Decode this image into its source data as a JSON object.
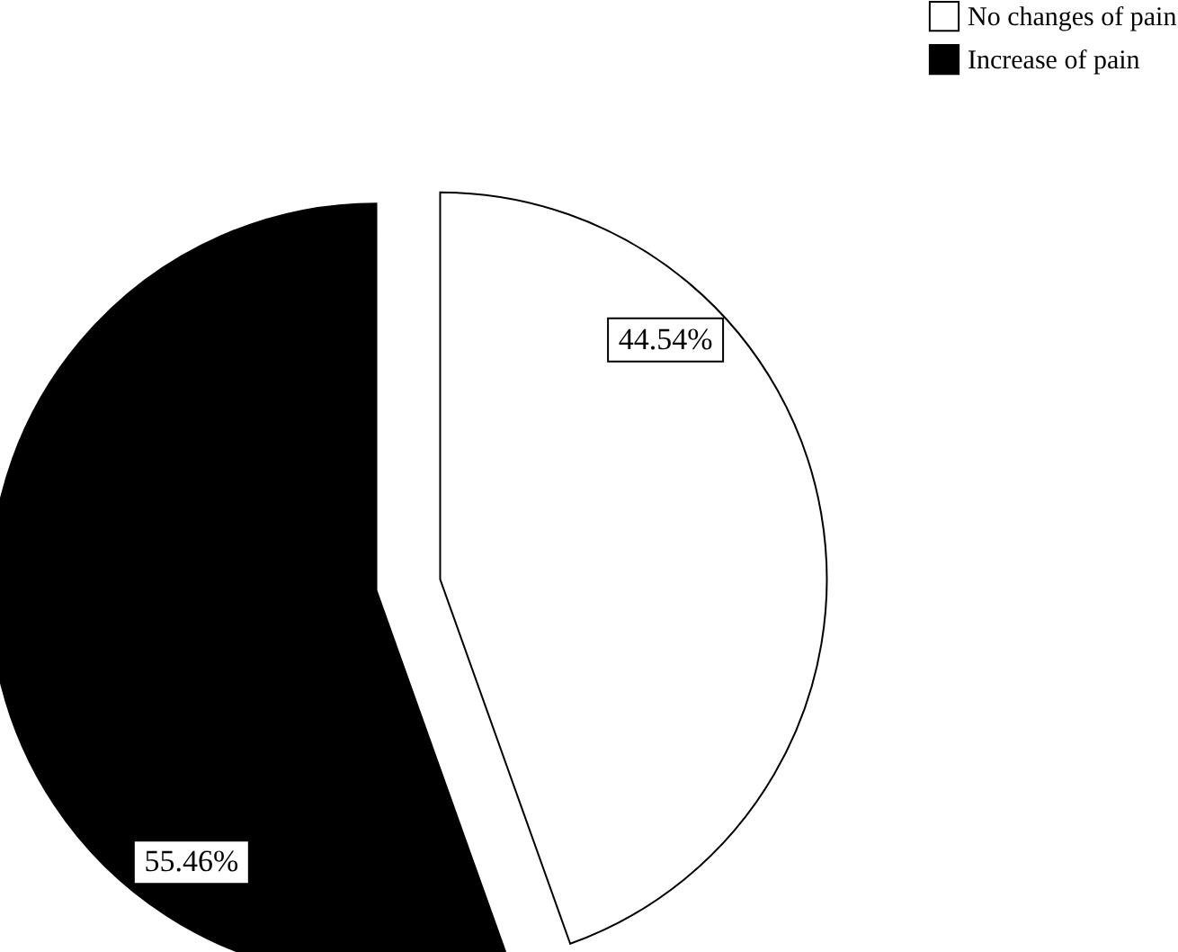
{
  "chart_data": {
    "type": "pie",
    "categories": [
      "No changes of pain",
      "Increase of pain"
    ],
    "values": [
      44.54,
      55.46
    ],
    "colors": [
      "#ffffff",
      "#000000"
    ],
    "value_labels": [
      "44.54%",
      "55.46%"
    ],
    "legend": "top right"
  }
}
